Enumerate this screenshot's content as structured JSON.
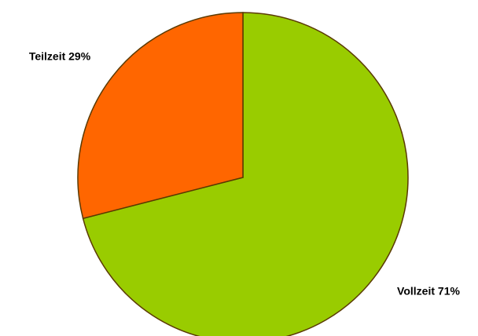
{
  "chart_data": {
    "type": "pie",
    "values": [
      71,
      29
    ],
    "value_labels": [
      "Vollzeit 71%",
      "Teilzeit 29%"
    ],
    "colors": [
      "#99cc00",
      "#ff6600"
    ]
  }
}
